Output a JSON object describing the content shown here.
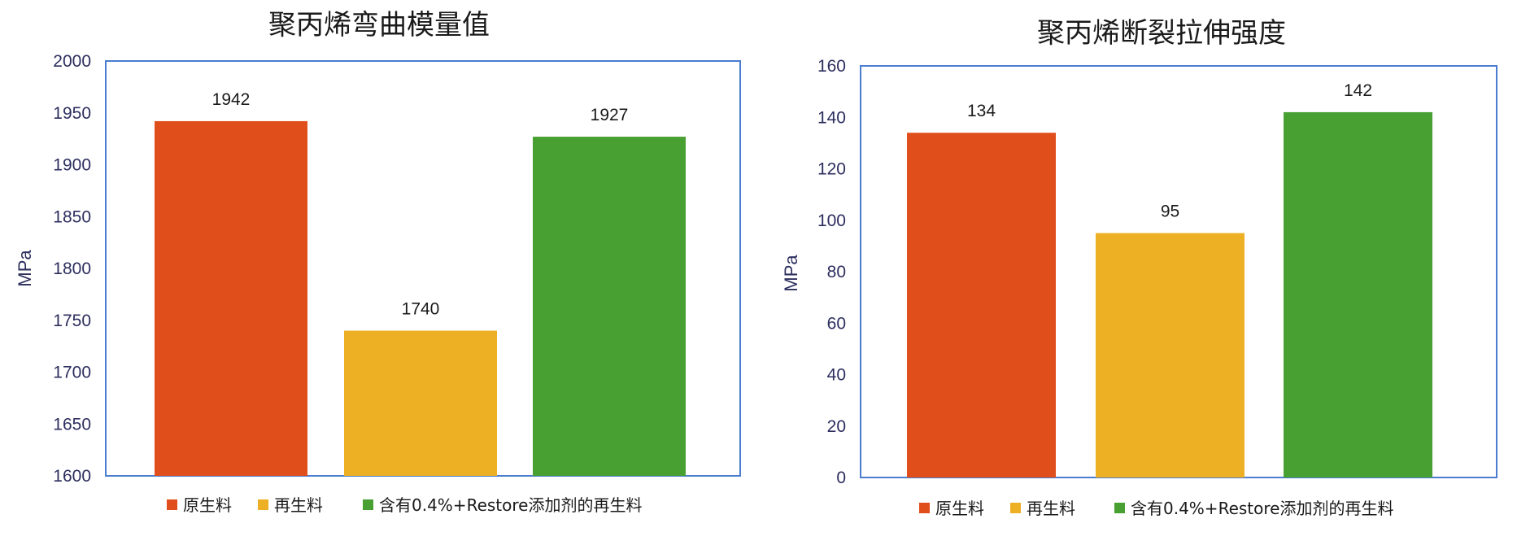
{
  "chart_data": [
    {
      "type": "bar",
      "title": "聚丙烯弯曲模量值",
      "ylabel": "MPa",
      "xlabel": "",
      "ylim": [
        1600,
        2000
      ],
      "yticks": [
        "1600",
        "1650",
        "1700",
        "1750",
        "1800",
        "1850",
        "1900",
        "1950",
        "2000"
      ],
      "categories": [
        "原生料",
        "再生料",
        "含有0.4%+Restore添加剂的再生料"
      ],
      "values": [
        1942,
        1740,
        1927
      ],
      "colors": [
        "#e04e1c",
        "#edb024",
        "#48a032"
      ],
      "grid": false,
      "legend": "bottom"
    },
    {
      "type": "bar",
      "title": "聚丙烯断裂拉伸强度",
      "ylabel": "MPa",
      "xlabel": "",
      "ylim": [
        0,
        160
      ],
      "yticks": [
        "0",
        "20",
        "40",
        "60",
        "80",
        "100",
        "120",
        "140",
        "160"
      ],
      "categories": [
        "原生料",
        "再生料",
        "含有0.4%+Restore添加剂的再生料"
      ],
      "values": [
        134,
        95,
        142
      ],
      "colors": [
        "#e04e1c",
        "#edb024",
        "#48a032"
      ],
      "grid": false,
      "legend": "bottom"
    }
  ]
}
